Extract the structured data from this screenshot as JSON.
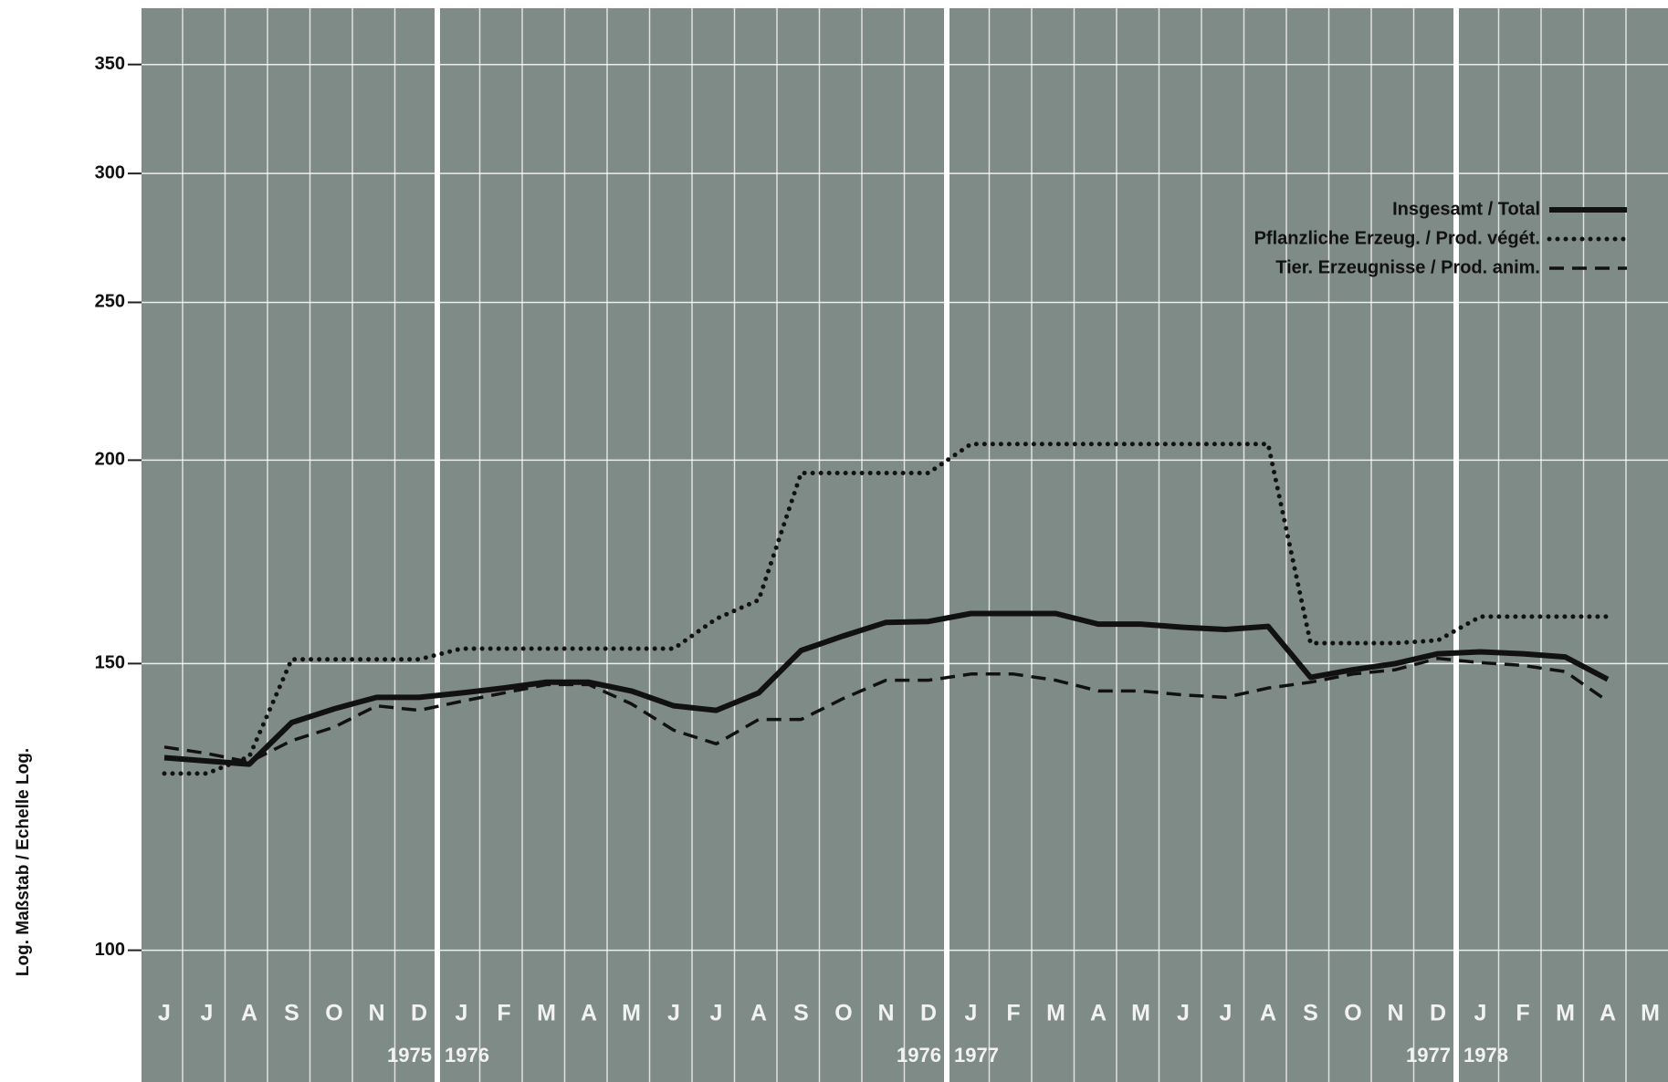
{
  "chart_data": {
    "type": "line",
    "y_axis_label": "Log. Maßstab / Echelle Log.",
    "categories": [
      "J",
      "J",
      "A",
      "S",
      "O",
      "N",
      "D",
      "J",
      "F",
      "M",
      "A",
      "M",
      "J",
      "J",
      "A",
      "S",
      "O",
      "N",
      "D",
      "J",
      "F",
      "M",
      "A",
      "M",
      "J",
      "J",
      "A",
      "S",
      "O",
      "N",
      "D",
      "J",
      "F",
      "M",
      "A",
      "M"
    ],
    "year_labels": [
      [
        "1975",
        "1976"
      ],
      [
        "1976",
        "1977"
      ],
      [
        "1977",
        "1978"
      ]
    ],
    "series": [
      {
        "name": "Insgesamt / Total",
        "color": "#111111",
        "style": "solid",
        "values": [
          131.3,
          130.7,
          130.1,
          138.0,
          140.7,
          143.0,
          143.0,
          143.9,
          144.9,
          146.1,
          146.1,
          144.3,
          141.3,
          140.4,
          143.9,
          152.8,
          156.0,
          159.0,
          159.2,
          161.0,
          161.0,
          161.0,
          158.6,
          158.6,
          157.9,
          157.4,
          158.1,
          147.1,
          148.7,
          150.0,
          152.1,
          152.5,
          152.1,
          151.4,
          146.7,
          null
        ]
      },
      {
        "name": "Pflanzliche Erzeug. / Prod. végét.",
        "color": "#111111",
        "style": "dotted",
        "values": [
          128.4,
          128.4,
          131.5,
          150.9,
          150.9,
          150.9,
          150.9,
          153.2,
          153.2,
          153.2,
          153.2,
          153.2,
          153.2,
          159.8,
          164.1,
          196.4,
          196.4,
          196.4,
          196.4,
          204.6,
          204.6,
          204.6,
          204.6,
          204.6,
          204.6,
          204.6,
          204.6,
          154.4,
          154.4,
          154.4,
          155.0,
          160.3,
          160.3,
          160.3,
          160.3,
          null
        ]
      },
      {
        "name": "Tier. Erzeugnisse / Prod. anim.",
        "color": "#111111",
        "style": "dashed",
        "values": [
          133.3,
          132.1,
          130.5,
          134.5,
          137.1,
          141.3,
          140.4,
          142.2,
          143.9,
          145.6,
          145.6,
          141.7,
          136.5,
          133.9,
          138.6,
          138.6,
          142.8,
          146.5,
          146.5,
          147.8,
          147.8,
          146.5,
          144.3,
          144.3,
          143.5,
          143.0,
          144.9,
          146.1,
          147.8,
          148.7,
          151.1,
          150.2,
          149.6,
          148.3,
          142.2,
          null
        ]
      }
    ],
    "ylim": [
      83,
      379
    ],
    "yticks": [
      100,
      150,
      200,
      250,
      300,
      350
    ],
    "log_scale": true,
    "grid": true,
    "legend": "upper right",
    "background": "#7f8b87"
  }
}
